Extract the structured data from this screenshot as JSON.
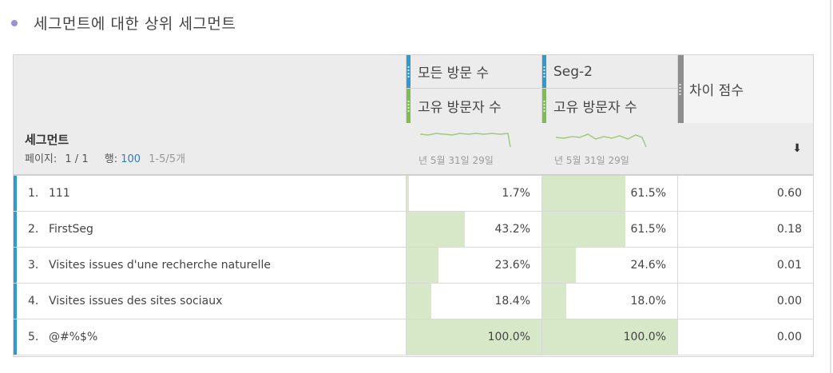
{
  "panel": {
    "title": "세그먼트에 대한 상위 세그먼트"
  },
  "columns": [
    {
      "metric": "모든 방문 수",
      "sub_metric": "고유 방문자 수",
      "spark_label": "년 5월 31일 29일"
    },
    {
      "metric": "Seg-2",
      "sub_metric": "고유 방문자 수",
      "spark_label": "년 5월 31일 29일"
    },
    {
      "metric": "차이 점수"
    }
  ],
  "dimension": {
    "label": "세그먼트",
    "page_prefix": "페이지:",
    "page_value": "1 / 1",
    "rows_prefix": "행:",
    "rows_value": "100",
    "range": "1-5/5개"
  },
  "rows": [
    {
      "num": "1.",
      "name": "111",
      "c1": "1.7%",
      "c1_fill": 0.017,
      "c2": "61.5%",
      "c2_fill": 0.615,
      "score": "0.60"
    },
    {
      "num": "2.",
      "name": "FirstSeg",
      "c1": "43.2%",
      "c1_fill": 0.432,
      "c2": "61.5%",
      "c2_fill": 0.615,
      "score": "0.18"
    },
    {
      "num": "3.",
      "name": "Visites issues d'une recherche naturelle",
      "c1": "23.6%",
      "c1_fill": 0.236,
      "c2": "24.6%",
      "c2_fill": 0.246,
      "score": "0.01"
    },
    {
      "num": "4.",
      "name": "Visites issues des sites sociaux",
      "c1": "18.4%",
      "c1_fill": 0.184,
      "c2": "18.0%",
      "c2_fill": 0.18,
      "score": "0.00"
    },
    {
      "num": "5.",
      "name": "@#%$%",
      "c1": "100.0%",
      "c1_fill": 1.0,
      "c2": "100.0%",
      "c2_fill": 1.0,
      "score": "0.00"
    }
  ],
  "icons": {
    "sort": "sort-down-icon"
  },
  "colors": {
    "accent_blue": "#2d9ad6",
    "accent_green": "#7cc04b",
    "bar_fill": "#d6e8c8",
    "bullet": "#9b8fd6"
  }
}
